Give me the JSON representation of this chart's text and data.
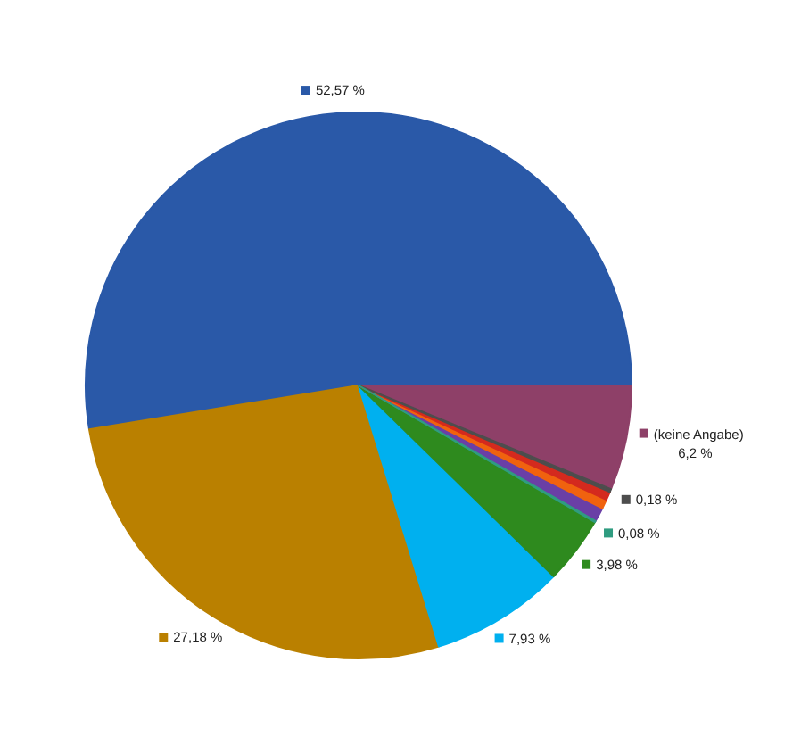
{
  "chart_data": {
    "type": "pie",
    "categories": [
      "(keine Angabe)",
      null,
      null,
      null,
      null,
      null,
      null,
      null,
      null,
      null
    ],
    "values": [
      6.2,
      0.18,
      0.5,
      0.55,
      0.83,
      0.08,
      3.98,
      7.93,
      27.18,
      52.57
    ],
    "colors": [
      "#8e4068",
      "#4d4d4d",
      "#d42a1e",
      "#f0620f",
      "#6a3fa6",
      "#2f9c80",
      "#2e8a1e",
      "#00b0ef",
      "#ba8000",
      "#2a59a8"
    ],
    "value_labels": [
      "6,2 %",
      "0,18 %",
      null,
      null,
      null,
      "0,08 %",
      "3,98 %",
      "7,93 %",
      "27,18 %",
      "52,57 %"
    ]
  }
}
